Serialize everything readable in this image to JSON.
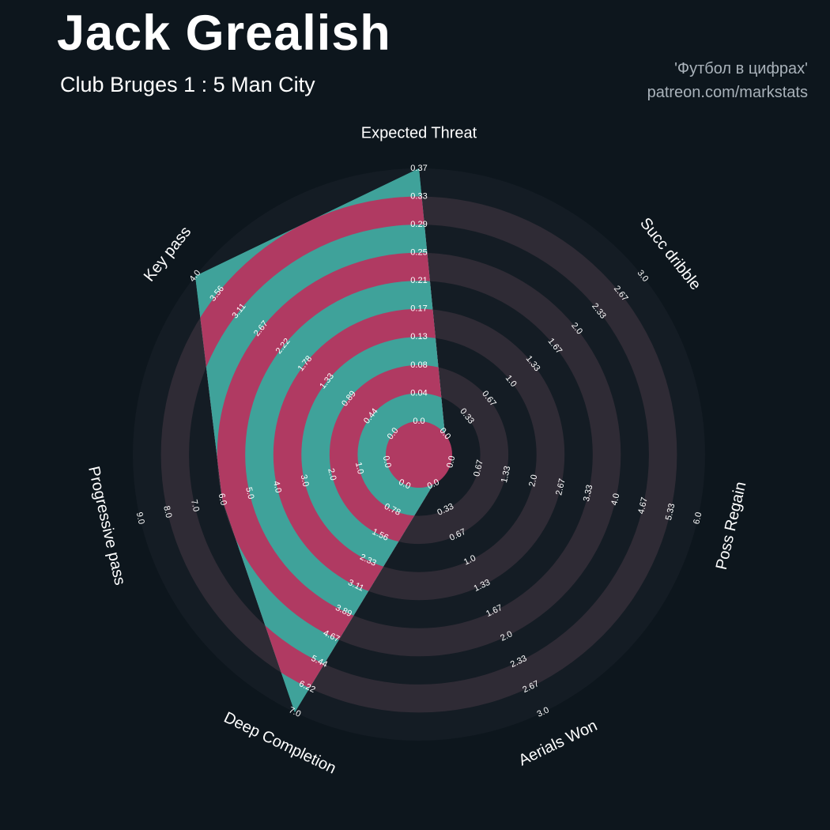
{
  "header": {
    "title": "Jack Grealish",
    "subtitle": "Club Bruges 1 : 5 Man City",
    "credit_line1": "'Футбол в цифрах'",
    "credit_line2": "patreon.com/markstats"
  },
  "chart_data": {
    "type": "radar",
    "title": "Jack Grealish — Club Bruges 1 : 5 Man City",
    "num_rings": 9,
    "start_angle_deg": 90,
    "direction": "clockwise",
    "params": [
      {
        "label": "Expected Threat",
        "min": 0,
        "max": 0.37,
        "value": 0.37,
        "ticks": [
          "0.0",
          "0.04",
          "0.08",
          "0.13",
          "0.17",
          "0.21",
          "0.25",
          "0.29",
          "0.33",
          "0.37"
        ]
      },
      {
        "label": "Succ dribble",
        "min": 0,
        "max": 3.0,
        "value": 0.0,
        "ticks": [
          "0.0",
          "0.33",
          "0.67",
          "1.0",
          "1.33",
          "1.67",
          "2.0",
          "2.33",
          "2.67",
          "3.0"
        ]
      },
      {
        "label": "Poss Regain",
        "min": 0,
        "max": 6.0,
        "value": 0.0,
        "ticks": [
          "0.0",
          "0.67",
          "1.33",
          "2.0",
          "2.67",
          "3.33",
          "4.0",
          "4.67",
          "5.33",
          "6.0"
        ]
      },
      {
        "label": "Aerials Won",
        "min": 0,
        "max": 3.0,
        "value": 0.0,
        "ticks": [
          "0.0",
          "0.33",
          "0.67",
          "1.0",
          "1.33",
          "1.67",
          "2.0",
          "2.33",
          "2.67",
          "3.0"
        ]
      },
      {
        "label": "Deep Completion",
        "min": 0,
        "max": 7.0,
        "value": 7.0,
        "ticks": [
          "0.0",
          "0.78",
          "1.56",
          "2.33",
          "3.11",
          "3.89",
          "4.67",
          "5.44",
          "6.22",
          "7.0"
        ]
      },
      {
        "label": "Progressive pass",
        "min": 0,
        "max": 9.0,
        "value": 6.0,
        "ticks": [
          "0.0",
          "1.0",
          "2.0",
          "3.0",
          "4.0",
          "5.0",
          "6.0",
          "7.0",
          "8.0",
          "9.0"
        ]
      },
      {
        "label": "Key pass",
        "min": 0,
        "max": 4.0,
        "value": 4.0,
        "ticks": [
          "0.0",
          "0.44",
          "0.89",
          "1.33",
          "1.78",
          "2.22",
          "2.67",
          "3.11",
          "3.56",
          "4.0"
        ]
      }
    ],
    "colors": {
      "background": "#0d161d",
      "ring_dark": "#141c24",
      "ring_light": "#2f2b35",
      "radar_fill": "#3fa29a",
      "radar_ring": "#b03a62",
      "tick_text": "#ffffff",
      "axis_text": "#ffffff",
      "title_text": "#ffffff",
      "subtitle_text": "#ffffff",
      "credit_text": "#a9b2ba"
    }
  }
}
